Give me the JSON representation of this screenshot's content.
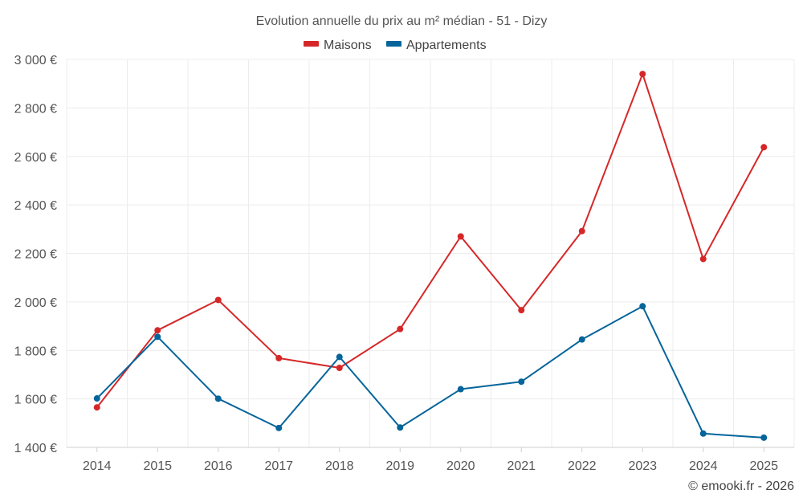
{
  "chart_data": {
    "type": "line",
    "title": "Evolution annuelle du prix au m² médian - 51 - Dizy",
    "categories": [
      "2014",
      "2015",
      "2016",
      "2017",
      "2018",
      "2019",
      "2020",
      "2021",
      "2022",
      "2023",
      "2024",
      "2025"
    ],
    "series": [
      {
        "name": "Maisons",
        "color": "#d62728",
        "values": [
          1565,
          1883,
          2008,
          1768,
          1728,
          1888,
          2270,
          1966,
          2292,
          2940,
          2177,
          2638
        ]
      },
      {
        "name": "Appartements",
        "color": "#05649b",
        "values": [
          1602,
          1856,
          1601,
          1480,
          1773,
          1482,
          1640,
          1671,
          1845,
          1982,
          1457,
          1440
        ]
      }
    ],
    "ylim": [
      1400,
      3000
    ],
    "yticks": [
      1400,
      1600,
      1800,
      2000,
      2200,
      2400,
      2600,
      2800,
      3000
    ],
    "ytick_labels": [
      "1 400 €",
      "1 600 €",
      "1 800 €",
      "2 000 €",
      "2 200 €",
      "2 400 €",
      "2 600 €",
      "2 800 €",
      "3 000 €"
    ],
    "xlabel": "",
    "ylabel": "",
    "grid": true,
    "legend_position": "top-center"
  },
  "credit": "© emooki.fr - 2026"
}
